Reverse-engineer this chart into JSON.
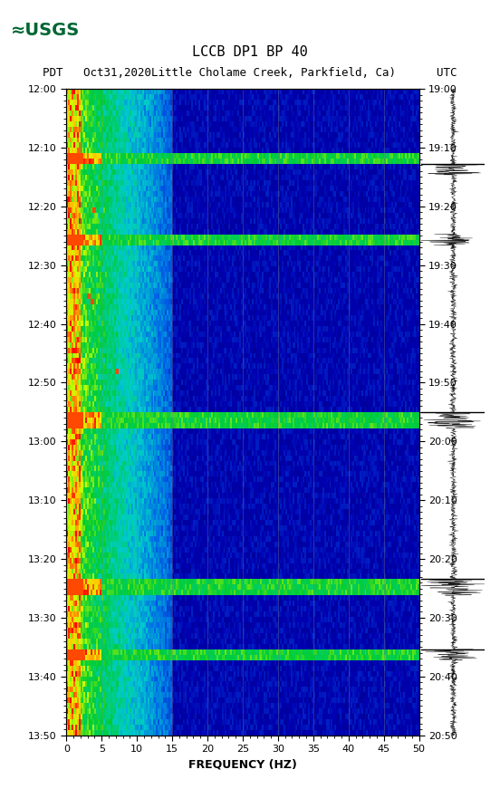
{
  "title_line1": "LCCB DP1 BP 40",
  "title_line2": "PDT   Oct31,2020Little Cholame Creek, Parkfield, Ca)      UTC",
  "left_times": [
    "12:00",
    "12:10",
    "12:20",
    "12:30",
    "12:40",
    "12:50",
    "13:00",
    "13:10",
    "13:20",
    "13:30",
    "13:40",
    "13:50"
  ],
  "right_times": [
    "19:00",
    "19:10",
    "19:20",
    "19:30",
    "19:40",
    "19:50",
    "20:00",
    "20:10",
    "20:20",
    "20:30",
    "20:40",
    "20:50"
  ],
  "freq_ticks": [
    0,
    5,
    10,
    15,
    20,
    25,
    30,
    35,
    40,
    45,
    50
  ],
  "xlabel": "FREQUENCY (HZ)",
  "freq_min": 0,
  "freq_max": 50,
  "time_steps": 120,
  "freq_steps": 200,
  "event_rows": [
    12,
    27,
    60,
    61,
    91,
    92,
    104
  ],
  "seismogram_events": [
    14,
    27,
    60,
    61,
    91,
    92,
    104
  ],
  "background_color": "#ffffff",
  "dark_blue": "#00008B",
  "event_color_hot": "#FF0000",
  "event_color_yellow": "#FFFF00",
  "event_color_cyan": "#00FFFF"
}
